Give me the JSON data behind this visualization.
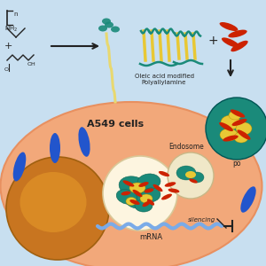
{
  "bg_color": "#c8dff0",
  "cell_fill": "#f2a87a",
  "cell_edge": "#e89060",
  "nucleus_fill": "#c87520",
  "nucleus_grad": "#d98a25",
  "teal": "#1a8a7a",
  "yellow": "#e8c835",
  "red": "#cc2200",
  "blue": "#2255cc",
  "text_dark": "#222222",
  "endo1_fill": "#fdf5e0",
  "endo2_fill": "#f0e8c8",
  "mrna_color": "#7aabe8",
  "chain_color": "#e8d870",
  "title": "A549 cells",
  "label_endosome": "Endosome",
  "label_mrna": "mRNA",
  "label_silencing": "silencing",
  "label_oleic1": "Oleic acid modified",
  "label_oleic2": "Polyallylamine",
  "label_po": "po"
}
